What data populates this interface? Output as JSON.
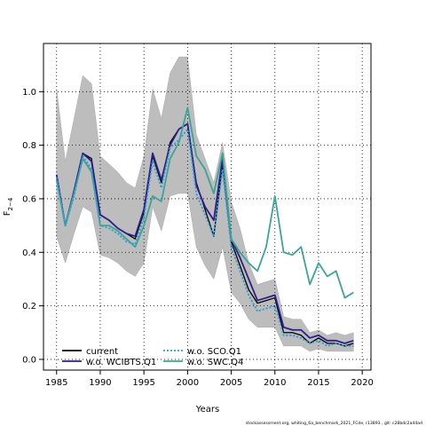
{
  "chart_data": {
    "type": "line",
    "xlabel": "Years",
    "ylabel": "F",
    "ylabel_sub": "2−4",
    "xlim": [
      1983.5,
      2021
    ],
    "ylim": [
      -0.04,
      1.18
    ],
    "xticks": [
      1985,
      1990,
      1995,
      2000,
      2005,
      2010,
      2015,
      2020
    ],
    "yticks": [
      0.0,
      0.2,
      0.4,
      0.6,
      0.8,
      1.0
    ],
    "ytick_labels": [
      "0.0",
      "0.2",
      "0.4",
      "0.6",
      "0.8",
      "1.0"
    ],
    "grid": true,
    "legend_position": "bottom-left",
    "footnote": "stockassessment.org, whiting_6a_benchmark_2021_FCde, r13893 , git: c28bdc2a44ad",
    "x": [
      1985,
      1986,
      1987,
      1988,
      1989,
      1990,
      1991,
      1992,
      1993,
      1994,
      1995,
      1996,
      1997,
      1998,
      1999,
      2000,
      2001,
      2002,
      2003,
      2004,
      2005,
      2006,
      2007,
      2008,
      2009,
      2010,
      2011,
      2012,
      2013,
      2014,
      2015,
      2016,
      2017,
      2018,
      2019
    ],
    "confidence_band": {
      "upper": [
        1.01,
        0.74,
        0.9,
        1.06,
        1.03,
        0.76,
        0.73,
        0.7,
        0.66,
        0.64,
        0.76,
        1.01,
        0.9,
        1.07,
        1.13,
        1.13,
        0.84,
        0.75,
        0.66,
        0.81,
        0.59,
        0.49,
        0.36,
        0.28,
        0.29,
        0.3,
        0.16,
        0.15,
        0.15,
        0.1,
        0.11,
        0.09,
        0.1,
        0.09,
        0.1
      ],
      "lower": [
        0.46,
        0.36,
        0.47,
        0.57,
        0.55,
        0.39,
        0.38,
        0.36,
        0.33,
        0.31,
        0.36,
        0.57,
        0.48,
        0.61,
        0.62,
        0.62,
        0.42,
        0.35,
        0.3,
        0.42,
        0.25,
        0.21,
        0.15,
        0.12,
        0.12,
        0.12,
        0.05,
        0.05,
        0.05,
        0.03,
        0.04,
        0.03,
        0.03,
        0.03,
        0.03
      ]
    },
    "series": [
      {
        "name": "current",
        "color": "#000000",
        "dash": "solid",
        "width": 1.3,
        "values": [
          0.68,
          0.5,
          0.62,
          0.77,
          0.75,
          0.54,
          0.52,
          0.49,
          0.47,
          0.45,
          0.55,
          0.76,
          0.66,
          0.81,
          0.86,
          0.88,
          0.66,
          0.56,
          0.46,
          0.73,
          0.44,
          0.35,
          0.26,
          0.21,
          0.22,
          0.23,
          0.1,
          0.1,
          0.09,
          0.06,
          0.08,
          0.06,
          0.06,
          0.05,
          0.06
        ]
      },
      {
        "name": "w.o. WCIBTS.Q1",
        "color": "#2e1e8c",
        "dash": "solid",
        "width": 1.8,
        "values": [
          0.69,
          0.5,
          0.63,
          0.77,
          0.74,
          0.54,
          0.52,
          0.49,
          0.47,
          0.46,
          0.56,
          0.77,
          0.67,
          0.8,
          0.86,
          0.88,
          0.65,
          0.57,
          0.52,
          0.75,
          0.45,
          0.38,
          0.3,
          0.22,
          0.23,
          0.24,
          0.12,
          0.11,
          0.11,
          0.08,
          0.09,
          0.07,
          0.07,
          0.06,
          0.07
        ]
      },
      {
        "name": "w.o. SCO.Q1",
        "color": "#2a9fd6",
        "dash": "dotted",
        "width": 1.8,
        "values": [
          0.68,
          0.5,
          0.61,
          0.76,
          0.71,
          0.5,
          0.49,
          0.47,
          0.44,
          0.43,
          0.53,
          0.74,
          0.64,
          0.79,
          0.82,
          0.86,
          0.62,
          0.54,
          0.46,
          0.71,
          0.42,
          0.33,
          0.24,
          0.18,
          0.19,
          0.2,
          0.09,
          0.09,
          0.08,
          0.06,
          0.07,
          0.05,
          0.06,
          0.05,
          0.05
        ]
      },
      {
        "name": "w.o. SWC.Q4",
        "color": "#3aa597",
        "dash": "solid",
        "width": 1.8,
        "values": [
          0.67,
          0.5,
          0.62,
          0.75,
          0.7,
          0.5,
          0.5,
          0.48,
          0.45,
          0.42,
          0.5,
          0.61,
          0.59,
          0.75,
          0.81,
          0.94,
          0.76,
          0.71,
          0.62,
          0.77,
          0.45,
          0.4,
          0.36,
          0.33,
          0.42,
          0.61,
          0.4,
          0.39,
          0.42,
          0.28,
          0.36,
          0.31,
          0.33,
          0.23,
          0.25
        ]
      }
    ]
  }
}
